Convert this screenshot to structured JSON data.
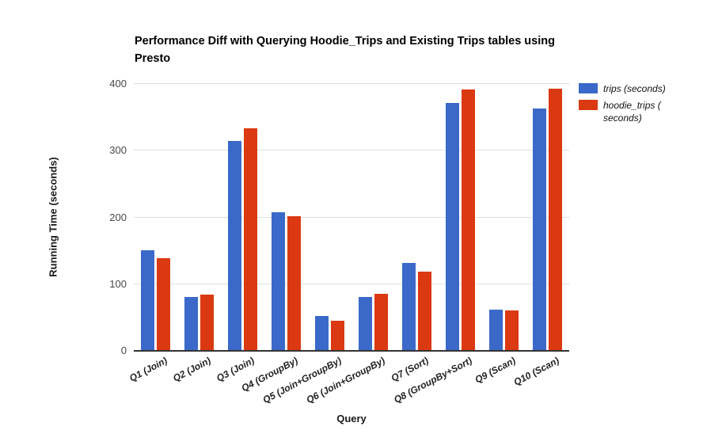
{
  "chart_data": {
    "type": "bar",
    "title": "Performance Diff with Querying Hoodie_Trips and Existing Trips tables using Presto",
    "xlabel": "Query",
    "ylabel": "Running Time (seconds)",
    "categories": [
      "Q1 (Join)",
      "Q2 (Join)",
      "Q3 (Join)",
      "Q4 (GroupBy)",
      "Q5 (Join+GroupBy)",
      "Q6 (Join+GroupBy)",
      "Q7 (Sort)",
      "Q8 (GroupBy+Sort)",
      "Q9 (Scan)",
      "Q10 (Scan)"
    ],
    "series": [
      {
        "name": "trips (seconds)",
        "color": "#3B69C9",
        "values": [
          150,
          80,
          313,
          207,
          51,
          80,
          130,
          370,
          60,
          362
        ]
      },
      {
        "name": "hoodie_trips (seconds)",
        "color": "#DB3912",
        "values": [
          138,
          83,
          332,
          201,
          44,
          84,
          117,
          390,
          59,
          392
        ]
      }
    ],
    "ylim": [
      0,
      400
    ],
    "yticks": [
      0,
      100,
      200,
      300,
      400
    ],
    "grid": true,
    "legend_position": "right",
    "legend_labels": [
      "trips (seconds)",
      "hoodie_trips ( seconds)"
    ]
  }
}
